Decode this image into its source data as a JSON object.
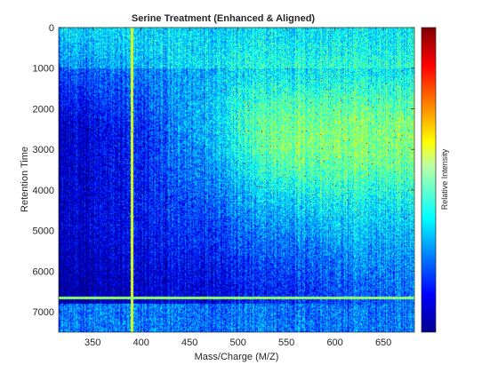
{
  "chart_data": {
    "type": "heatmap",
    "title": "Serine Treatment (Enhanced & Aligned)",
    "xlabel": "Mass/Charge (M/Z)",
    "ylabel": "Retention Time",
    "xlim": [
      315,
      682
    ],
    "ylim": [
      0,
      7500
    ],
    "y_axis_direction": "reversed",
    "x_ticks": [
      350,
      400,
      450,
      500,
      550,
      600,
      650
    ],
    "y_ticks": [
      0,
      1000,
      2000,
      3000,
      4000,
      5000,
      6000,
      7000
    ],
    "colormap": "jet",
    "colorbar": {
      "label": "Relative Intensity",
      "tick_labels": false
    },
    "colors": {
      "low": "#00008f",
      "mid_low": "#0060ff",
      "mid": "#40ffc0",
      "mid_high": "#ffff00",
      "high": "#800000"
    },
    "features": [
      {
        "name": "vertical streak",
        "mz": 390
      },
      {
        "name": "horizontal band",
        "rt": 6650
      },
      {
        "name": "bright region",
        "mz_range": [
          420,
          682
        ],
        "rt_range": [
          1000,
          4600
        ]
      }
    ]
  }
}
